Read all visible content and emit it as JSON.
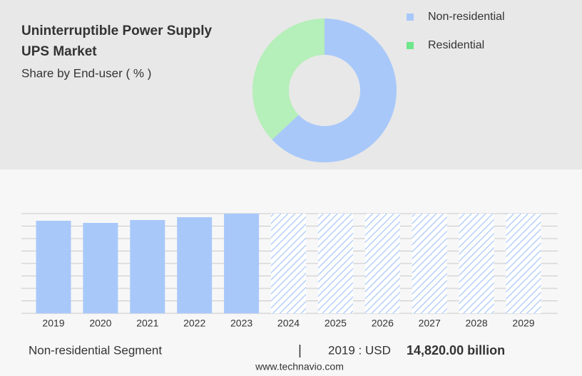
{
  "chart_data": [
    {
      "type": "donut",
      "title": "Uninterruptible Power Supply",
      "title_line2": "UPS Market",
      "subtitle": "Share by End-user ( % )",
      "categories": [
        "Non-residential",
        "Residential"
      ],
      "values": [
        63,
        37
      ],
      "colors": [
        "#a8c8fa",
        "#b5efb9"
      ],
      "legend_colors": [
        "#a8c8fa",
        "#6ee68a"
      ],
      "legend": "right"
    },
    {
      "type": "bar",
      "categories": [
        "2019",
        "2020",
        "2021",
        "2022",
        "2023",
        "2024",
        "2025",
        "2026",
        "2027",
        "2028",
        "2029"
      ],
      "values": [
        14820,
        14478,
        14934,
        15390,
        15960,
        null,
        null,
        null,
        null,
        null,
        null
      ],
      "color": "#a8c8fa",
      "ylim": [
        0,
        15960
      ],
      "yticks": [
        0,
        1995,
        3990,
        5985,
        7980,
        9975,
        11970,
        13965,
        15960
      ],
      "grid": true,
      "footer_segment": "Non-residential Segment",
      "footer_year": "2019 : USD",
      "footer_value": "14,820.00 billion"
    }
  ],
  "source": "www.technavio.com"
}
